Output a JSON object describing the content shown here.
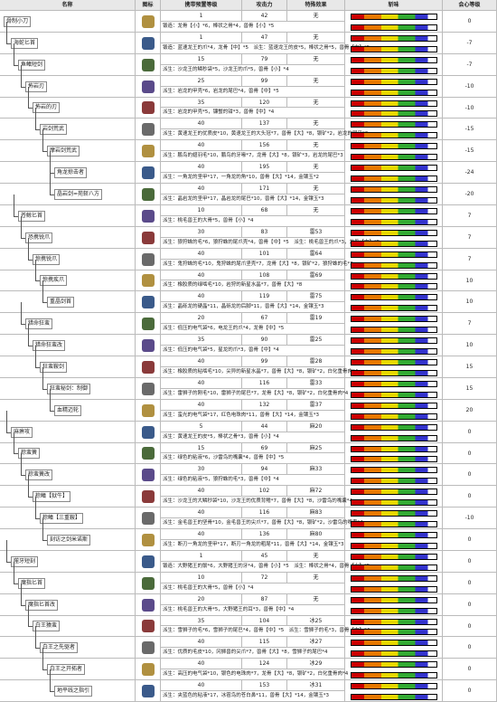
{
  "header": {
    "columns": [
      "名称",
      "图标",
      "携带预置等级",
      "攻击力",
      "特殊效果",
      "斩味",
      "会心等级"
    ]
  },
  "rows": [
    {
      "name": "骨制小刀",
      "level": "1",
      "attack": "42",
      "effect": "无",
      "affinity": "0",
      "materials": "锻造：龙骨【小】*6，棒状之骨*4，兽骨【小】*5"
    },
    {
      "name": "海蛇匕首",
      "level": "1",
      "attack": "47",
      "effect": "无",
      "affinity": "-7",
      "materials": "锻造：蓝速龙王的爪*4，龙骨【中】*5　派生：蓝速龙王的皮*5，棒状之骨*5，兽骨【中】*5"
    },
    {
      "name": "鱼鳍短剑",
      "level": "15",
      "attack": "79",
      "effect": "无",
      "affinity": "-7",
      "materials": "派生：沙龙王的鳞秒袋*5，沙龙王的爪*5，兽骨【小】*4"
    },
    {
      "name": "怖岩刃",
      "level": "25",
      "attack": "99",
      "effect": "无",
      "affinity": "-10",
      "materials": "派生：岩龙的甲壳*6，岩龙的尾巴*4，兽骨【中】*5"
    },
    {
      "name": "怖岩的刃",
      "level": "35",
      "attack": "120",
      "effect": "无",
      "affinity": "-10",
      "materials": "派生：岩龙的甲壳*5，镰蟹的钳*3，兽骨【中】*4"
    },
    {
      "name": "岩剑荒武",
      "level": "40",
      "attack": "137",
      "effect": "无",
      "affinity": "-15",
      "materials": "派生：黄速龙王的优质皮*10，黄速龙王的大头冠*7，兽骨【大】*8，银矿*2，岩龙的尾巴*3"
    },
    {
      "name": "摩岩剑荒武",
      "level": "40",
      "attack": "156",
      "effect": "无",
      "affinity": "-15",
      "materials": "派生：鹏鸟的翅羽毛*10，鹏鸟的牙喙*7，龙骨【大】*8，银矿*3，岩龙的尾巴*3"
    },
    {
      "name": "角龙掠击者",
      "level": "40",
      "attack": "195",
      "effect": "无",
      "affinity": "-24",
      "materials": "派生：一角龙的坚甲*17，一角龙的角*10，兽骨【大】*14，金镶玉*2"
    },
    {
      "name": "晶岩剑=苑斩八方",
      "level": "40",
      "attack": "171",
      "effect": "无",
      "affinity": "-20",
      "materials": "派生：晶岩龙的坚甲*17，晶岩龙的尾巴*10，兽骨【大】*14，金镶玉*3"
    },
    {
      "name": "苍鲸匕首",
      "level": "10",
      "attack": "68",
      "effect": "无",
      "affinity": "7",
      "materials": "派生：桃毛兽王的大骨*5，兽骨【小】*4"
    },
    {
      "name": "恐携锐爪",
      "level": "30",
      "attack": "83",
      "effect": "雷53",
      "affinity": "7",
      "materials": "派生：狼狩蛛的毛*6，狼狩蛛的尾爪壳*4，兽骨【中】*5　派生：桃毛兽王的爪*3，龙骨【中】*5"
    },
    {
      "name": "惊携锐爪",
      "level": "40",
      "attack": "101",
      "effect": "雷64",
      "affinity": "7",
      "materials": "派生：鬼狩蛛的毛*10，鬼狩蛛的尾爪坚壳*7，龙骨【大】*8，银矿*2，狼狩蛛的毛*3"
    },
    {
      "name": "惊携疾爪",
      "level": "40",
      "attack": "108",
      "effect": "雷69",
      "affinity": "10",
      "materials": "派生：橡胶质的绿啮毛*10，岩狩的新星水晶*7，兽骨【大】*8"
    },
    {
      "name": "重晶剑首",
      "level": "40",
      "attack": "119",
      "effect": "雷75",
      "affinity": "10",
      "materials": "派生：晶砾龙的硬晶*11，晶砾龙的后脚*11，兽骨【大】*14，金镶玉*3"
    },
    {
      "name": "猎命狂蛮",
      "level": "20",
      "attack": "67",
      "effect": "雷19",
      "affinity": "7",
      "materials": "派生：低压的电气袋*6，电龙王的爪*4，龙骨【中】*5"
    },
    {
      "name": "猎命狂蛮改",
      "level": "35",
      "attack": "90",
      "effect": "雷25",
      "affinity": "10",
      "materials": "派生：低压的电气袋*5，星龙的爪*3，兽骨【中】*4"
    },
    {
      "name": "狂蛮鞍剑",
      "level": "40",
      "attack": "99",
      "effect": "雷28",
      "affinity": "15",
      "materials": "派生：橡胶质的粘啮毛*10，尖异的新星水晶*7，兽骨【大】*8，银矿*2，白化重骨肉*4"
    },
    {
      "name": "狂蛮秘剑：制御",
      "level": "40",
      "attack": "116",
      "effect": "雷33",
      "affinity": "15",
      "materials": "派生：雷狮子的刚毛*10，雷狮子的尾巴*7，龙骨【大】*8，银矿*2，白化重骨肉*4"
    },
    {
      "name": "血精迈轮",
      "level": "40",
      "attack": "132",
      "effect": "雷37",
      "affinity": "20",
      "materials": "派生：蛮光的电气袋*17，红色电珠肉*11，兽骨【大】*14，金镶玉*3"
    },
    {
      "name": "麻痹攻",
      "level": "5",
      "attack": "44",
      "effect": "麻20",
      "affinity": "0",
      "materials": "派生：黄速龙王的皮*5，棒状之骨*3，兽骨【小】*4"
    },
    {
      "name": "棕蛮簧",
      "level": "15",
      "attack": "69",
      "effect": "麻25",
      "affinity": "0",
      "materials": "派生：绿色的粘液*6，沙雷鸟的嘴囊*4，兽骨【中】*5"
    },
    {
      "name": "棕蛮簧改",
      "level": "30",
      "attack": "94",
      "effect": "麻33",
      "affinity": "0",
      "materials": "派生：绿色的粘液*5，狼狩蛛的毛*3，兽骨【中】*4"
    },
    {
      "name": "棕鳍【狱牛】",
      "level": "40",
      "attack": "102",
      "effect": "麻72",
      "affinity": "0",
      "materials": "派生：沙龙王的大鳞秒袋*10，沙龙王的优质背鳍*7，兽骨【大】*8，沙雷鸟的嘴囊*4"
    },
    {
      "name": "棕鳍【三重鞍】",
      "level": "40",
      "attack": "116",
      "effect": "麻83",
      "affinity": "-10",
      "materials": "派生：金毛兽王的坚骨*10，金毛兽王的尖爪*7，兽骨【大】*8，银矿*2，沙雷鸟的嘴囊*4"
    },
    {
      "name": "刻访之剑米诺斯",
      "level": "40",
      "attack": "136",
      "effect": "麻80",
      "affinity": "0",
      "materials": "派生：断刃一角龙的坚甲*17，断刃一角龙的粗尾*11，兽骨【大】*14，金镶玉*3"
    },
    {
      "name": "噬牙短刻",
      "level": "1",
      "attack": "45",
      "effect": "无",
      "affinity": "0",
      "materials": "锻造：大野猪王的鬃*6，大野猪王的牙*4，兽骨【小】*5　派生：棒状之骨*4，兽骨【小】*5"
    },
    {
      "name": "魔指匕首",
      "level": "10",
      "attack": "72",
      "effect": "无",
      "affinity": "0",
      "materials": "派生：桃毛兽王的大骨*5，兽骨【小】*4"
    },
    {
      "name": "魔指匕首改",
      "level": "20",
      "attack": "87",
      "effect": "无",
      "affinity": "0",
      "materials": "派生：桃毛兽王的大骨*5，大野猪王的耳*3，兽骨【中】*4"
    },
    {
      "name": "白王猿蛮",
      "level": "35",
      "attack": "104",
      "effect": "冰25",
      "affinity": "0",
      "materials": "派生：雪狮子的毛*6，雪狮子的尾巴*4，兽骨【中】*5　派生：雪狮子的毛*3，兽骨【中】*4"
    },
    {
      "name": "白王之先驱者",
      "level": "40",
      "attack": "115",
      "effect": "冰27",
      "affinity": "0",
      "materials": "派生：优质的毛皮*10，冈狮兽的尖爪*7，兽骨【大】*8，雪狮子的尾巴*4"
    },
    {
      "name": "白王之开拓者",
      "level": "40",
      "attack": "124",
      "effect": "冰29",
      "affinity": "0",
      "materials": "派生：高压的电气袋*10，银色的电珠肉*7，龙骨【大】*8，银矿*2，白化重骨肉*4"
    },
    {
      "name": "地平线之指引",
      "level": "40",
      "attack": "153",
      "effect": "冰31",
      "affinity": "0",
      "materials": "派生：夹蓝色的粘液*17，冰雹鸟的苍白鼻*11，兽骨【大】*14，金镶玉*3"
    }
  ]
}
